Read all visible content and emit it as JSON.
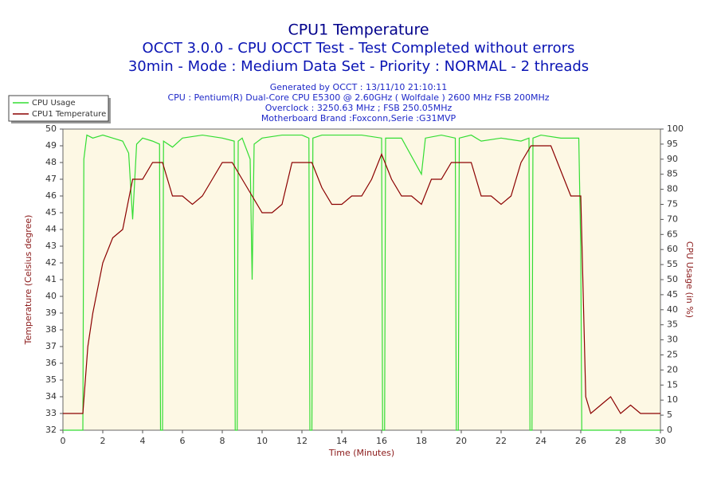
{
  "chart_data": {
    "type": "line",
    "title": "CPU1 Temperature",
    "subtitle": [
      "OCCT 3.0.0 - CPU OCCT Test - Test Completed without errors",
      "30min - Mode : Medium Data Set - Priority : NORMAL - 2 threads"
    ],
    "info": [
      "Generated by OCCT : 13/11/10 21:10:11",
      "CPU : Pentium(R) Dual-Core CPU E5300 @ 2.60GHz ( Wolfdale ) 2600 MHz FSB 200MHz",
      "Overclock : 3250.63 MHz ; FSB 250.05MHz",
      "Motherboard Brand :Foxconn,Serie :G31MVP"
    ],
    "xlabel": "Time (Minutes)",
    "ylabel": "Temperature (Celsius degree)",
    "y2label": "CPU Usage (in %)",
    "xlim": [
      0,
      30
    ],
    "xticks": [
      0,
      2,
      4,
      6,
      8,
      10,
      12,
      14,
      16,
      18,
      20,
      22,
      24,
      26,
      28,
      30
    ],
    "ylim": [
      32,
      50
    ],
    "yticks": [
      32,
      33,
      34,
      35,
      36,
      37,
      38,
      39,
      40,
      41,
      42,
      43,
      44,
      45,
      46,
      47,
      48,
      49,
      50
    ],
    "y2lim": [
      0,
      100
    ],
    "y2ticks": [
      0,
      5,
      10,
      15,
      20,
      25,
      30,
      35,
      40,
      45,
      50,
      55,
      60,
      65,
      70,
      75,
      80,
      85,
      90,
      95,
      100
    ],
    "grid": false,
    "legend": "top-left",
    "series": [
      {
        "name": "CPU Usage",
        "color": "#33dd33",
        "axis": "y2",
        "x": [
          0,
          1.0,
          1.05,
          1.2,
          1.5,
          2,
          2.5,
          3,
          3.3,
          3.5,
          3.7,
          4,
          4.5,
          4.85,
          4.9,
          5.0,
          5.05,
          5.5,
          6,
          7,
          8,
          8.6,
          8.65,
          8.75,
          8.8,
          9,
          9.4,
          9.5,
          9.6,
          10,
          11,
          12,
          12.35,
          12.4,
          12.5,
          12.55,
          13,
          14,
          15,
          16,
          16.05,
          16.15,
          16.2,
          17,
          18,
          18.2,
          19,
          19.7,
          19.75,
          19.85,
          19.9,
          20.5,
          21,
          22,
          23,
          23.4,
          23.45,
          23.55,
          23.6,
          24,
          25,
          25.9,
          26.0,
          26.05,
          27,
          30
        ],
        "values": [
          0,
          0,
          90,
          98,
          97,
          98,
          97,
          96,
          92,
          70,
          95,
          97,
          96,
          95,
          0,
          0,
          96,
          94,
          97,
          98,
          97,
          96,
          0,
          0,
          96,
          97,
          90,
          50,
          95,
          97,
          98,
          98,
          97,
          0,
          0,
          97,
          98,
          98,
          98,
          97,
          0,
          0,
          97,
          97,
          85,
          97,
          98,
          97,
          0,
          0,
          97,
          98,
          96,
          97,
          96,
          97,
          0,
          0,
          97,
          98,
          97,
          97,
          60,
          0,
          0,
          0
        ]
      },
      {
        "name": "CPU1 Temperature",
        "color": "#8b0000",
        "axis": "y",
        "x": [
          0,
          0.5,
          1,
          1.25,
          1.5,
          2,
          2.5,
          3,
          3.5,
          4,
          4.5,
          5,
          5.5,
          6,
          6.5,
          7,
          7.5,
          8,
          8.5,
          9,
          9.5,
          10,
          10.5,
          11,
          11.5,
          12,
          12.5,
          13,
          13.5,
          14,
          14.5,
          15,
          15.5,
          16,
          16.5,
          17,
          17.5,
          18,
          18.5,
          19,
          19.5,
          20,
          20.5,
          21,
          21.5,
          22,
          22.5,
          23,
          23.5,
          24,
          24.5,
          25,
          25.5,
          26,
          26.25,
          26.5,
          27,
          27.5,
          28,
          28.5,
          29,
          29.5,
          30
        ],
        "values": [
          33,
          33,
          33,
          37,
          39,
          42,
          43.5,
          44,
          47,
          47,
          48,
          48,
          46,
          46,
          45.5,
          46,
          47,
          48,
          48,
          47,
          46,
          45,
          45,
          45.5,
          48,
          48,
          48,
          46.5,
          45.5,
          45.5,
          46,
          46,
          47,
          48.5,
          47,
          46,
          46,
          45.5,
          47,
          47,
          48,
          48,
          48,
          46,
          46,
          45.5,
          46,
          48,
          49,
          49,
          49,
          47.5,
          46,
          46,
          34,
          33,
          33.5,
          34,
          33,
          33.5,
          33,
          33,
          33
        ]
      }
    ]
  }
}
